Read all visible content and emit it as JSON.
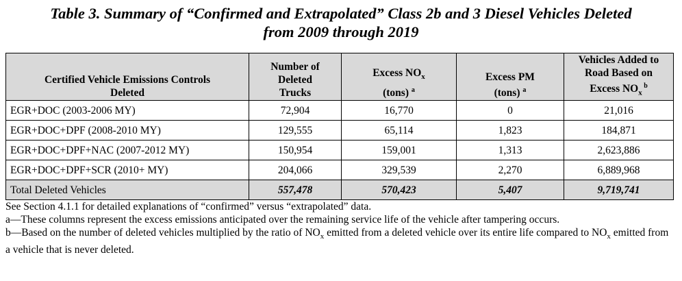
{
  "title": {
    "line1": "Table 3. Summary of “Confirmed and Extrapolated” Class 2b and 3 Diesel Vehicles Deleted",
    "line2": "from 2009 through 2019"
  },
  "table": {
    "headers": [
      {
        "lines": [
          "Certified Vehicle Emissions Controls",
          "Deleted"
        ]
      },
      {
        "lines": [
          "Number of",
          "Deleted",
          "Trucks"
        ]
      },
      {
        "lines": [
          "Excess NO",
          "x",
          "(tons) ",
          "a"
        ]
      },
      {
        "lines": [
          "Excess PM",
          "(tons) ",
          "a"
        ]
      },
      {
        "lines": [
          "Vehicles Added to",
          "Road Based on",
          "Excess NO",
          "x",
          " b"
        ]
      }
    ],
    "rows": [
      {
        "label": "EGR+DOC (2003-2006 MY)",
        "trucks": "72,904",
        "nox": "16,770",
        "pm": "0",
        "vehicles": "21,016"
      },
      {
        "label": "EGR+DOC+DPF (2008-2010 MY)",
        "trucks": "129,555",
        "nox": "65,114",
        "pm": "1,823",
        "vehicles": "184,871"
      },
      {
        "label": "EGR+DOC+DPF+NAC (2007-2012 MY)",
        "trucks": "150,954",
        "nox": "159,001",
        "pm": "1,313",
        "vehicles": "2,623,886"
      },
      {
        "label": "EGR+DOC+DPF+SCR (2010+ MY)",
        "trucks": "204,066",
        "nox": "329,539",
        "pm": "2,270",
        "vehicles": "6,889,968"
      }
    ],
    "total": {
      "label": "Total Deleted Vehicles",
      "trucks": "557,478",
      "nox": "570,423",
      "pm": "5,407",
      "vehicles": "9,719,741"
    }
  },
  "notes": {
    "section": "See Section 4.1.1 for detailed explanations of “confirmed” versus “extrapolated” data.",
    "a": "a—These columns represent the excess emissions anticipated over the remaining service life of the vehicle after tampering occurs.",
    "b_part1": "b—Based on the number of deleted vehicles multiplied by the ratio of NO",
    "b_sub1": "x",
    "b_part2": " emitted from a deleted vehicle over its entire life compared to NO",
    "b_sub2": "x",
    "b_part3": " emitted from a vehicle that is never deleted."
  }
}
